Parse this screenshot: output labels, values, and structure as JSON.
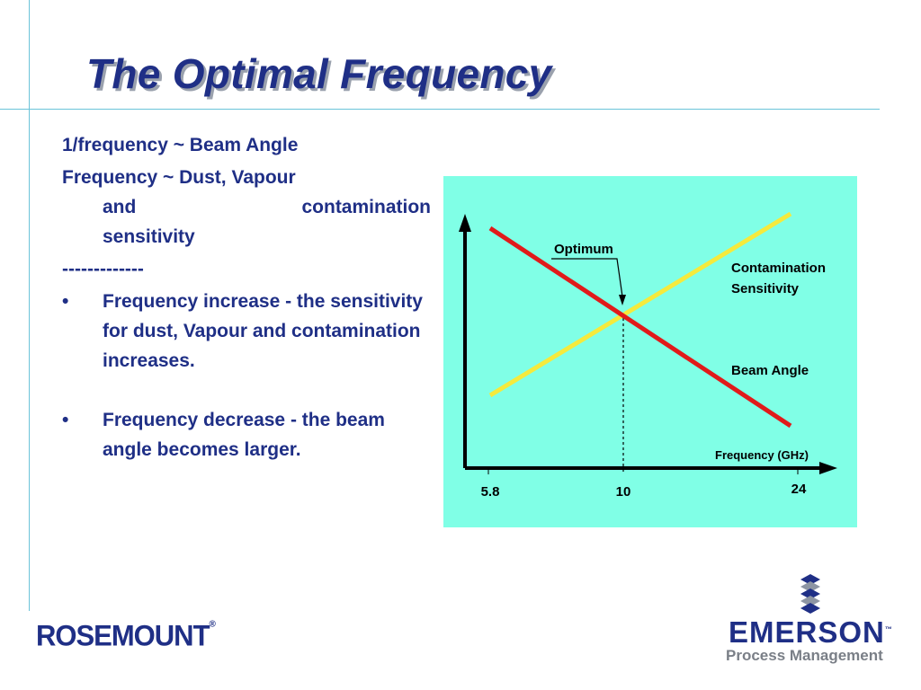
{
  "slide": {
    "title": "The Optimal Frequency",
    "line1": "1/frequency ~ Beam Angle",
    "line2": "Frequency ~ Dust, Vapour",
    "line2_and": "and",
    "line2_contamination": "contamination",
    "line2_end": "sensitivity",
    "separator": "-------------",
    "bullet_char": "•",
    "bullet1": "Frequency increase - the sensitivity for dust, Vapour and contamination increases.",
    "bullet2": "Frequency decrease - the beam angle becomes larger."
  },
  "chart_data": {
    "type": "line",
    "x_ticks": [
      "5.8",
      "10",
      "24"
    ],
    "xlabel": "Frequency (GHz)",
    "ylabel": "",
    "series": [
      {
        "name": "Contamination Sensitivity",
        "color": "#f5ea3c",
        "trend": "increasing"
      },
      {
        "name": "Beam Angle",
        "color": "#e11a1a",
        "trend": "decreasing"
      }
    ],
    "annotation": {
      "label": "Optimum",
      "x": "10"
    },
    "background_color": "#80ffe6"
  },
  "logos": {
    "rosemount": "ROSEMOUNT",
    "rosemount_mark": "®",
    "emerson": "EMERSON",
    "emerson_mark": "™",
    "emerson_sub": "Process Management"
  },
  "colors": {
    "text": "#1f2f86",
    "rule": "#6ac3d9",
    "grey": "#7a7f87"
  }
}
